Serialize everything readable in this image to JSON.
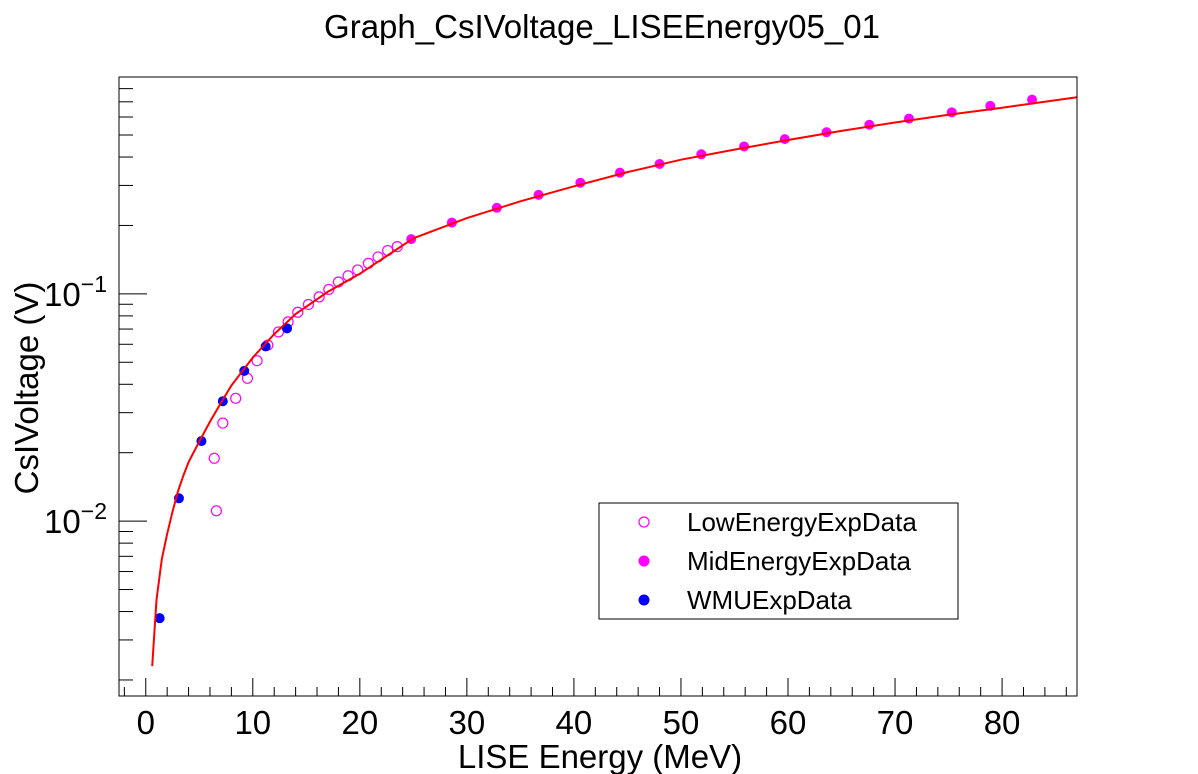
{
  "chart_data": {
    "type": "scatter",
    "title": "Graph_CsIVoltage_LISEEnergy05_01",
    "xlabel": "LISE Energy (MeV)",
    "ylabel": "CsIVoltage (V)",
    "xlim": [
      -2.5,
      87
    ],
    "ylim": [
      0.0017,
      0.9
    ],
    "yscale": "log",
    "grid": false,
    "legend_position": "bottom-right",
    "x_ticks": [
      0,
      10,
      20,
      30,
      40,
      50,
      60,
      70,
      80
    ],
    "x_tick_labels": [
      "0",
      "10",
      "20",
      "30",
      "40",
      "50",
      "60",
      "70",
      "80"
    ],
    "y_major_ticks": [
      {
        "value": 0.01,
        "base": "10",
        "exp": "−2"
      },
      {
        "value": 0.1,
        "base": "10",
        "exp": "−1"
      }
    ],
    "series": [
      {
        "name": "LowEnergyExpData",
        "marker": "open-circle",
        "color": "#ff00ff",
        "x": [
          6.6,
          6.4,
          7.2,
          8.4,
          9.5,
          10.4,
          11.4,
          12.4,
          13.3,
          14.2,
          15.2,
          16.2,
          17.1,
          18.0,
          18.9,
          19.8,
          20.8,
          21.7,
          22.6,
          23.5
        ],
        "y": [
          0.0111,
          0.0189,
          0.027,
          0.0347,
          0.0425,
          0.0508,
          0.0595,
          0.068,
          0.0753,
          0.083,
          0.0898,
          0.097,
          0.1046,
          0.1128,
          0.1201,
          0.1274,
          0.1362,
          0.1454,
          0.1551,
          0.1614
        ]
      },
      {
        "name": "MidEnergyExpData",
        "marker": "filled-circle",
        "color": "#ff00ff",
        "x": [
          24.8,
          28.6,
          32.8,
          36.7,
          40.6,
          44.3,
          48.0,
          51.9,
          55.9,
          59.7,
          63.6,
          67.6,
          71.3,
          75.3,
          78.9,
          82.8
        ],
        "y": [
          0.1741,
          0.2059,
          0.2392,
          0.2725,
          0.3082,
          0.3414,
          0.3728,
          0.4112,
          0.4453,
          0.4797,
          0.5141,
          0.5547,
          0.5904,
          0.6292,
          0.6717,
          0.7153
        ]
      },
      {
        "name": "WMUExpData",
        "marker": "filled-circle",
        "color": "#0000ff",
        "x": [
          1.3,
          3.1,
          5.2,
          7.2,
          9.2,
          11.2,
          13.2
        ],
        "y": [
          0.00374,
          0.0126,
          0.0225,
          0.0337,
          0.0458,
          0.0587,
          0.0705
        ]
      },
      {
        "name": "",
        "type": "line",
        "color": "#ff0000",
        "x": [
          0.6,
          1.0,
          1.5,
          2.0,
          2.5,
          3.0,
          3.5,
          4.0,
          5.0,
          6.0,
          7.0,
          8.0,
          10.0,
          12.0,
          14.0,
          17.0,
          20.0,
          25.0,
          30.0,
          35.0,
          40.0,
          45.0,
          50.0,
          55.0,
          60.0,
          65.0,
          70.0,
          75.0,
          80.0,
          87.0
        ],
        "y": [
          0.0023,
          0.0045,
          0.0068,
          0.0088,
          0.011,
          0.0135,
          0.0158,
          0.0182,
          0.0224,
          0.0274,
          0.033,
          0.0395,
          0.0525,
          0.0665,
          0.0815,
          0.102,
          0.1225,
          0.1755,
          0.2155,
          0.2555,
          0.2975,
          0.3435,
          0.3895,
          0.4315,
          0.4755,
          0.5215,
          0.5675,
          0.6135,
          0.6595,
          0.7325
        ]
      }
    ]
  }
}
